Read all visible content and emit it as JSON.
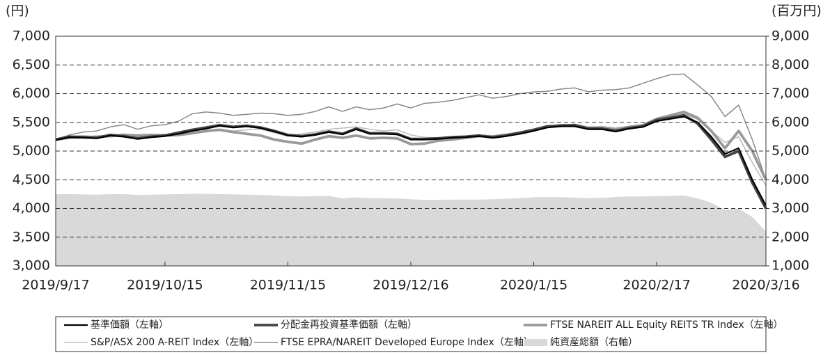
{
  "chart_data": {
    "type": "line",
    "y_unit_label": "(円)",
    "y2_unit_label": "(百万円)",
    "categories": [
      "2019/9/17",
      null,
      null,
      null,
      null,
      null,
      null,
      null,
      "2019/10/15",
      null,
      null,
      null,
      null,
      null,
      null,
      null,
      null,
      "2019/11/15",
      null,
      null,
      null,
      null,
      null,
      null,
      null,
      null,
      "2019/12/16",
      null,
      null,
      null,
      null,
      null,
      null,
      null,
      null,
      "2020/1/15",
      null,
      null,
      null,
      null,
      null,
      null,
      null,
      null,
      "2020/2/17",
      null,
      null,
      null,
      null,
      null,
      null,
      null,
      "2020/3/16"
    ],
    "ylim": [
      3000,
      7000
    ],
    "yticks": [
      {
        "value": 3000,
        "label": "3,000"
      },
      {
        "value": 3500,
        "label": "3,500"
      },
      {
        "value": 4000,
        "label": "4,000"
      },
      {
        "value": 4500,
        "label": "4,500"
      },
      {
        "value": 5000,
        "label": "5,000"
      },
      {
        "value": 5500,
        "label": "5,500"
      },
      {
        "value": 6000,
        "label": "6,000"
      },
      {
        "value": 6500,
        "label": "6,500"
      },
      {
        "value": 7000,
        "label": "7,000"
      }
    ],
    "y2lim": [
      1000,
      9000
    ],
    "y2ticks": [
      {
        "value": 1000,
        "label": "1,000"
      },
      {
        "value": 2000,
        "label": "2,000"
      },
      {
        "value": 3000,
        "label": "3,000"
      },
      {
        "value": 4000,
        "label": "4,000"
      },
      {
        "value": 5000,
        "label": "5,000"
      },
      {
        "value": 6000,
        "label": "6,000"
      },
      {
        "value": 7000,
        "label": "7,000"
      },
      {
        "value": 8000,
        "label": "8,000"
      },
      {
        "value": 9000,
        "label": "9,000"
      }
    ],
    "grid": true,
    "series": [
      {
        "name": "基準価額（左軸）",
        "color": "#000000",
        "values": [
          5190,
          5240,
          5235,
          5220,
          5270,
          5250,
          5210,
          5240,
          5260,
          5300,
          5350,
          5390,
          5440,
          5410,
          5430,
          5400,
          5340,
          5270,
          5250,
          5280,
          5330,
          5290,
          5380,
          5300,
          5300,
          5290,
          5200,
          5200,
          5210,
          5230,
          5240,
          5260,
          5230,
          5260,
          5300,
          5350,
          5410,
          5430,
          5430,
          5380,
          5380,
          5340,
          5390,
          5420,
          5520,
          5560,
          5600,
          5500,
          5250,
          4950,
          5050,
          4500,
          4050
        ]
      },
      {
        "name": "分配金再投資基準価額（左軸）",
        "color": "#444444",
        "values": [
          5200,
          5250,
          5240,
          5230,
          5280,
          5260,
          5220,
          5250,
          5270,
          5320,
          5370,
          5410,
          5450,
          5420,
          5440,
          5410,
          5350,
          5280,
          5260,
          5290,
          5340,
          5300,
          5390,
          5310,
          5310,
          5300,
          5210,
          5210,
          5220,
          5240,
          5250,
          5270,
          5240,
          5270,
          5320,
          5370,
          5430,
          5440,
          5450,
          5390,
          5390,
          5350,
          5400,
          5430,
          5540,
          5580,
          5620,
          5480,
          5200,
          4900,
          5000,
          4450,
          4000
        ]
      },
      {
        "name": "FTSE NAREIT ALL Equity REITS TR Index（左軸）",
        "color": "#999999",
        "values": [
          5200,
          5230,
          5240,
          5250,
          5260,
          5280,
          5270,
          5280,
          5270,
          5280,
          5310,
          5350,
          5370,
          5330,
          5300,
          5270,
          5200,
          5160,
          5130,
          5200,
          5260,
          5230,
          5270,
          5220,
          5230,
          5220,
          5120,
          5130,
          5180,
          5200,
          5230,
          5260,
          5250,
          5280,
          5320,
          5360,
          5420,
          5450,
          5450,
          5400,
          5400,
          5380,
          5420,
          5450,
          5560,
          5620,
          5680,
          5580,
          5350,
          5050,
          5350,
          5000,
          4500
        ]
      },
      {
        "name": "S&P/ASX 200 A-REIT Index（左軸）",
        "color": "#bbbbbb",
        "values": [
          5200,
          5260,
          5270,
          5250,
          5260,
          5300,
          5260,
          5280,
          5290,
          5300,
          5320,
          5330,
          5360,
          5350,
          5370,
          5380,
          5320,
          5260,
          5300,
          5330,
          5380,
          5400,
          5420,
          5380,
          5350,
          5370,
          5280,
          5240,
          5230,
          5250,
          5260,
          5280,
          5270,
          5300,
          5330,
          5370,
          5420,
          5440,
          5470,
          5420,
          5430,
          5400,
          5430,
          5440,
          5530,
          5580,
          5650,
          5550,
          5350,
          5150,
          5250,
          4800,
          4400
        ]
      },
      {
        "name": "FTSE EPRA/NAREIT Developed Europe Index（左軸）",
        "color": "#888888",
        "values": [
          5200,
          5280,
          5330,
          5350,
          5420,
          5460,
          5380,
          5440,
          5460,
          5520,
          5650,
          5680,
          5660,
          5620,
          5640,
          5660,
          5650,
          5620,
          5640,
          5690,
          5770,
          5690,
          5770,
          5720,
          5750,
          5820,
          5750,
          5830,
          5850,
          5880,
          5930,
          5980,
          5920,
          5950,
          6000,
          6030,
          6040,
          6080,
          6100,
          6030,
          6060,
          6070,
          6100,
          6180,
          6260,
          6330,
          6340,
          6150,
          5950,
          5600,
          5800,
          5200,
          4500
        ]
      },
      {
        "name": "純資産総額（右軸）",
        "color": "#d9d9d9",
        "type": "area",
        "axis": "y2",
        "values": [
          3500,
          3500,
          3490,
          3480,
          3500,
          3500,
          3470,
          3480,
          3490,
          3500,
          3510,
          3510,
          3500,
          3490,
          3480,
          3470,
          3450,
          3430,
          3420,
          3430,
          3440,
          3350,
          3390,
          3360,
          3360,
          3350,
          3320,
          3300,
          3300,
          3310,
          3310,
          3310,
          3320,
          3340,
          3360,
          3390,
          3400,
          3390,
          3380,
          3360,
          3370,
          3400,
          3420,
          3420,
          3430,
          3440,
          3450,
          3350,
          3200,
          2950,
          3000,
          2700,
          2200
        ]
      }
    ]
  }
}
